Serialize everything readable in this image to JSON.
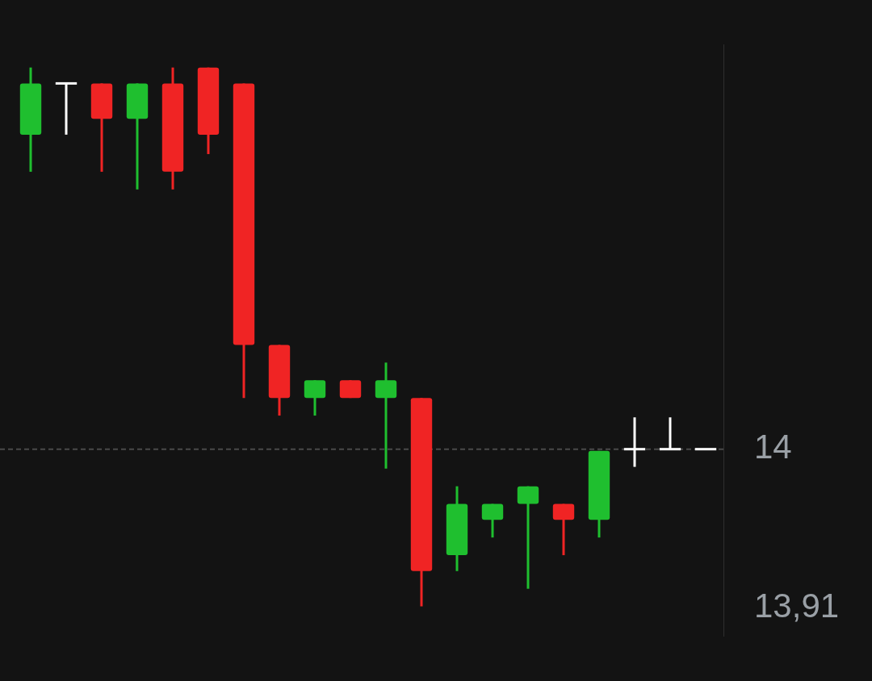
{
  "chart_data": {
    "type": "candlestick",
    "categories": [
      null,
      null,
      null,
      null,
      null,
      null,
      null,
      null,
      null,
      null,
      null,
      null,
      null,
      null,
      null,
      null,
      null,
      null,
      null,
      null
    ],
    "ohlc": [
      [
        14.178,
        14.216,
        14.157,
        14.207
      ],
      [
        14.207,
        14.207,
        14.178,
        14.207
      ],
      [
        14.207,
        14.207,
        14.157,
        14.187
      ],
      [
        14.187,
        14.207,
        14.147,
        14.207
      ],
      [
        14.207,
        14.216,
        14.147,
        14.157
      ],
      [
        14.216,
        14.216,
        14.167,
        14.178
      ],
      [
        14.207,
        14.207,
        14.029,
        14.059
      ],
      [
        14.059,
        14.059,
        14.019,
        14.029
      ],
      [
        14.029,
        14.039,
        14.019,
        14.039
      ],
      [
        14.039,
        14.039,
        14.029,
        14.029
      ],
      [
        14.029,
        14.049,
        13.989,
        14.039
      ],
      [
        14.029,
        14.029,
        13.911,
        13.931
      ],
      [
        13.94,
        13.979,
        13.931,
        13.969
      ],
      [
        13.96,
        13.969,
        13.95,
        13.969
      ],
      [
        13.969,
        13.979,
        13.921,
        13.979
      ],
      [
        13.969,
        13.969,
        13.94,
        13.96
      ],
      [
        13.96,
        13.999,
        13.95,
        13.999
      ],
      [
        14.0,
        14.018,
        13.99,
        14.0
      ],
      [
        14.0,
        14.018,
        14.0,
        14.0
      ],
      [
        14.0,
        14.0,
        14.0,
        14.0
      ]
    ],
    "colors": [
      "#1fbf2f",
      "#ffffff",
      "#f02424",
      "#1fbf2f",
      "#f02424",
      "#f02424",
      "#f02424",
      "#f02424",
      "#1fbf2f",
      "#f02424",
      "#1fbf2f",
      "#f02424",
      "#1fbf2f",
      "#1fbf2f",
      "#1fbf2f",
      "#f02424",
      "#1fbf2f",
      "#ffffff",
      "#ffffff",
      "#ffffff"
    ],
    "ylim": [
      13.894,
      14.229
    ],
    "yticks": [
      {
        "value": 14,
        "label": "14"
      },
      {
        "value": 13.91,
        "label": "13,91"
      }
    ],
    "ref_lines": [
      {
        "axis": "y",
        "value": 14,
        "line_style": "dashed",
        "color": "#4a4a4a"
      }
    ],
    "tick_labels": "y"
  }
}
